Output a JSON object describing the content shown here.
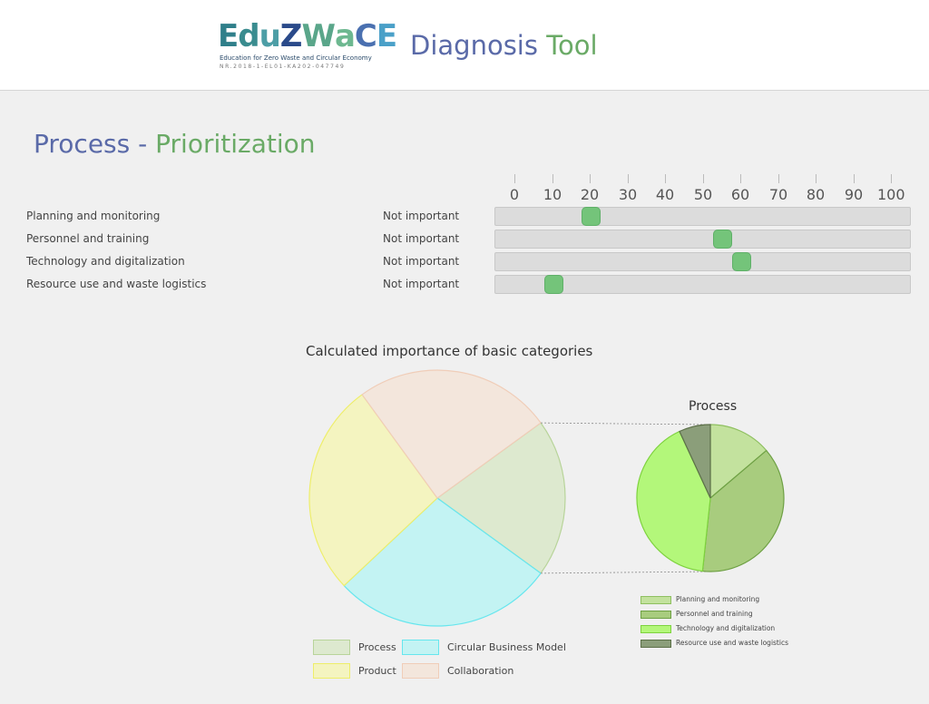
{
  "header": {
    "logo": {
      "word": "EduZWaCE",
      "subtitle": "Education for Zero Waste and Circular Economy",
      "code": "NR.2018-1-EL01-KA202-047749"
    },
    "app_title_part1": "Diagnosis",
    "app_title_part2": "Tool"
  },
  "page": {
    "title_part1": "Process -",
    "title_part2": "Prioritization"
  },
  "scale": {
    "ticks": [
      "0",
      "10",
      "20",
      "30",
      "40",
      "50",
      "60",
      "70",
      "80",
      "90",
      "100"
    ]
  },
  "sliders": [
    {
      "label": "Planning and monitoring",
      "min_label": "Not important",
      "value": 20
    },
    {
      "label": "Personnel and training",
      "min_label": "Not important",
      "value": 55
    },
    {
      "label": "Technology and digitalization",
      "min_label": "Not important",
      "value": 60
    },
    {
      "label": "Resource use and waste logistics",
      "min_label": "Not important",
      "value": 10
    }
  ],
  "colors": {
    "slider_thumb": "#74c47a",
    "title_blue": "#5a6aa8",
    "title_green": "#6aaa66"
  },
  "chart_data": [
    {
      "type": "pie",
      "title": "Calculated importance of basic categories",
      "categories": [
        "Process",
        "Circular Business Model",
        "Product",
        "Collaboration"
      ],
      "values": [
        20,
        28,
        27,
        25
      ],
      "colors": [
        {
          "fill": "#dde9cf",
          "stroke": "#b8d49a"
        },
        {
          "fill": "#c3f3f3",
          "stroke": "#66e6ee"
        },
        {
          "fill": "#f4f4c0",
          "stroke": "#eeee6a"
        },
        {
          "fill": "#f3e6dc",
          "stroke": "#f0cdb8"
        }
      ],
      "legend": "bottom"
    },
    {
      "type": "pie",
      "title": "Process",
      "categories": [
        "Planning and monitoring",
        "Personnel and training",
        "Technology and digitalization",
        "Resource use and waste logistics"
      ],
      "values": [
        13.8,
        37.9,
        41.4,
        6.9
      ],
      "colors": [
        {
          "fill": "#c3e29e",
          "stroke": "#8fc060"
        },
        {
          "fill": "#a8cc7e",
          "stroke": "#6ea044"
        },
        {
          "fill": "#b3f77a",
          "stroke": "#7ed23e"
        },
        {
          "fill": "#8b9e7a",
          "stroke": "#5c7048"
        }
      ],
      "legend": "bottom"
    }
  ]
}
